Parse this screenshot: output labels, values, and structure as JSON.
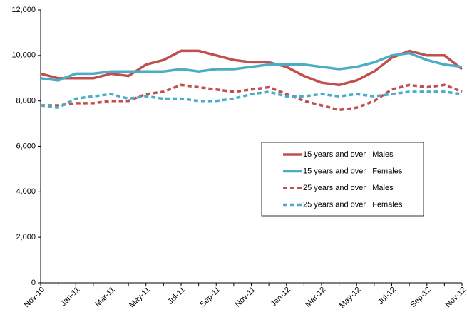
{
  "chart_data": {
    "type": "line",
    "categories": [
      "Nov-10",
      null,
      "Jan-11",
      null,
      "Mar-11",
      null,
      "May-11",
      null,
      "Jul-11",
      null,
      "Sep-11",
      null,
      "Nov-11",
      null,
      "Jan-12",
      null,
      "Mar-12",
      null,
      "May-12",
      null,
      "Jul-12",
      null,
      "Sep-12",
      null,
      "Nov-12"
    ],
    "ylim": [
      0,
      12000
    ],
    "yticks": [
      0,
      {
        "value": 2000,
        "label": "2,000"
      },
      {
        "value": 4000,
        "label": "4,000"
      },
      {
        "value": 6000,
        "label": "6,000"
      },
      {
        "value": 8000,
        "label": "8,000"
      },
      {
        "value": 10000,
        "label": "10,000"
      },
      {
        "value": 12000,
        "label": "12,000"
      }
    ],
    "grid": false,
    "series": [
      {
        "name": "15 years and over   Males",
        "color": "#c0504d",
        "dashed": false,
        "values": [
          9200,
          9000,
          9000,
          9000,
          9200,
          9100,
          9600,
          9800,
          10200,
          10200,
          10000,
          9800,
          9700,
          9700,
          9500,
          9100,
          8800,
          8700,
          8900,
          9300,
          9900,
          10200,
          10000,
          10000,
          9400
        ]
      },
      {
        "name": "15 years and over   Females",
        "color": "#4bacc6",
        "dashed": false,
        "values": [
          9000,
          8900,
          9200,
          9200,
          9300,
          9300,
          9300,
          9300,
          9400,
          9300,
          9400,
          9400,
          9500,
          9600,
          9600,
          9600,
          9500,
          9400,
          9500,
          9700,
          10000,
          10100,
          9800,
          9600,
          9500
        ]
      },
      {
        "name": "25 years and over   Males",
        "color": "#c0504d",
        "dashed": true,
        "values": [
          7800,
          7800,
          7900,
          7900,
          8000,
          8000,
          8300,
          8400,
          8700,
          8600,
          8500,
          8400,
          8500,
          8600,
          8300,
          8000,
          7800,
          7600,
          7700,
          8000,
          8500,
          8700,
          8600,
          8700,
          8400
        ]
      },
      {
        "name": "25 years and over   Females",
        "color": "#4bacc6",
        "dashed": true,
        "values": [
          7800,
          7700,
          8100,
          8200,
          8300,
          8100,
          8200,
          8100,
          8100,
          8000,
          8000,
          8100,
          8300,
          8400,
          8200,
          8200,
          8300,
          8200,
          8300,
          8200,
          8300,
          8400,
          8400,
          8400,
          8300
        ]
      }
    ]
  }
}
